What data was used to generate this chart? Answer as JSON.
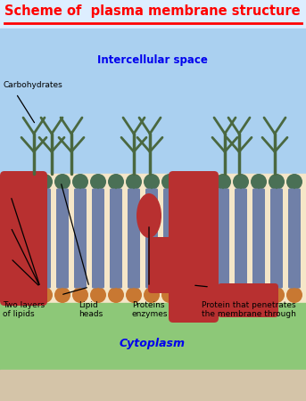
{
  "title": "Scheme of  plasma membrane structure",
  "title_color": "#ff0000",
  "title_fontsize": 10.5,
  "bg_beige": "#d4c4a8",
  "intercellular_color": "#aad0f0",
  "membrane_bg_color": "#f5e6c8",
  "cytoplasm_color": "#8dc878",
  "intercellular_label": "Intercellular space",
  "intercellular_label_color": "#0000ee",
  "cytoplasm_label": "Cytoplasm",
  "cytoplasm_label_color": "#0000ee",
  "title_bg": "#ddeeff",
  "colors": {
    "head_top": "#4a7055",
    "head_bot": "#c87832",
    "tail": "#7080a8",
    "protein_red": "#b83030",
    "carbo_green": "#4a6840"
  },
  "labels": {
    "carbohydrates": "Carbohydrates",
    "two_layers": "Two layers\nof lipids",
    "lipid_heads": "Lipid\nheads",
    "proteins_enzymes": "Proteins\nenzymes",
    "protein_penetrates": "Protein that penetrates\nthe membrane through"
  }
}
